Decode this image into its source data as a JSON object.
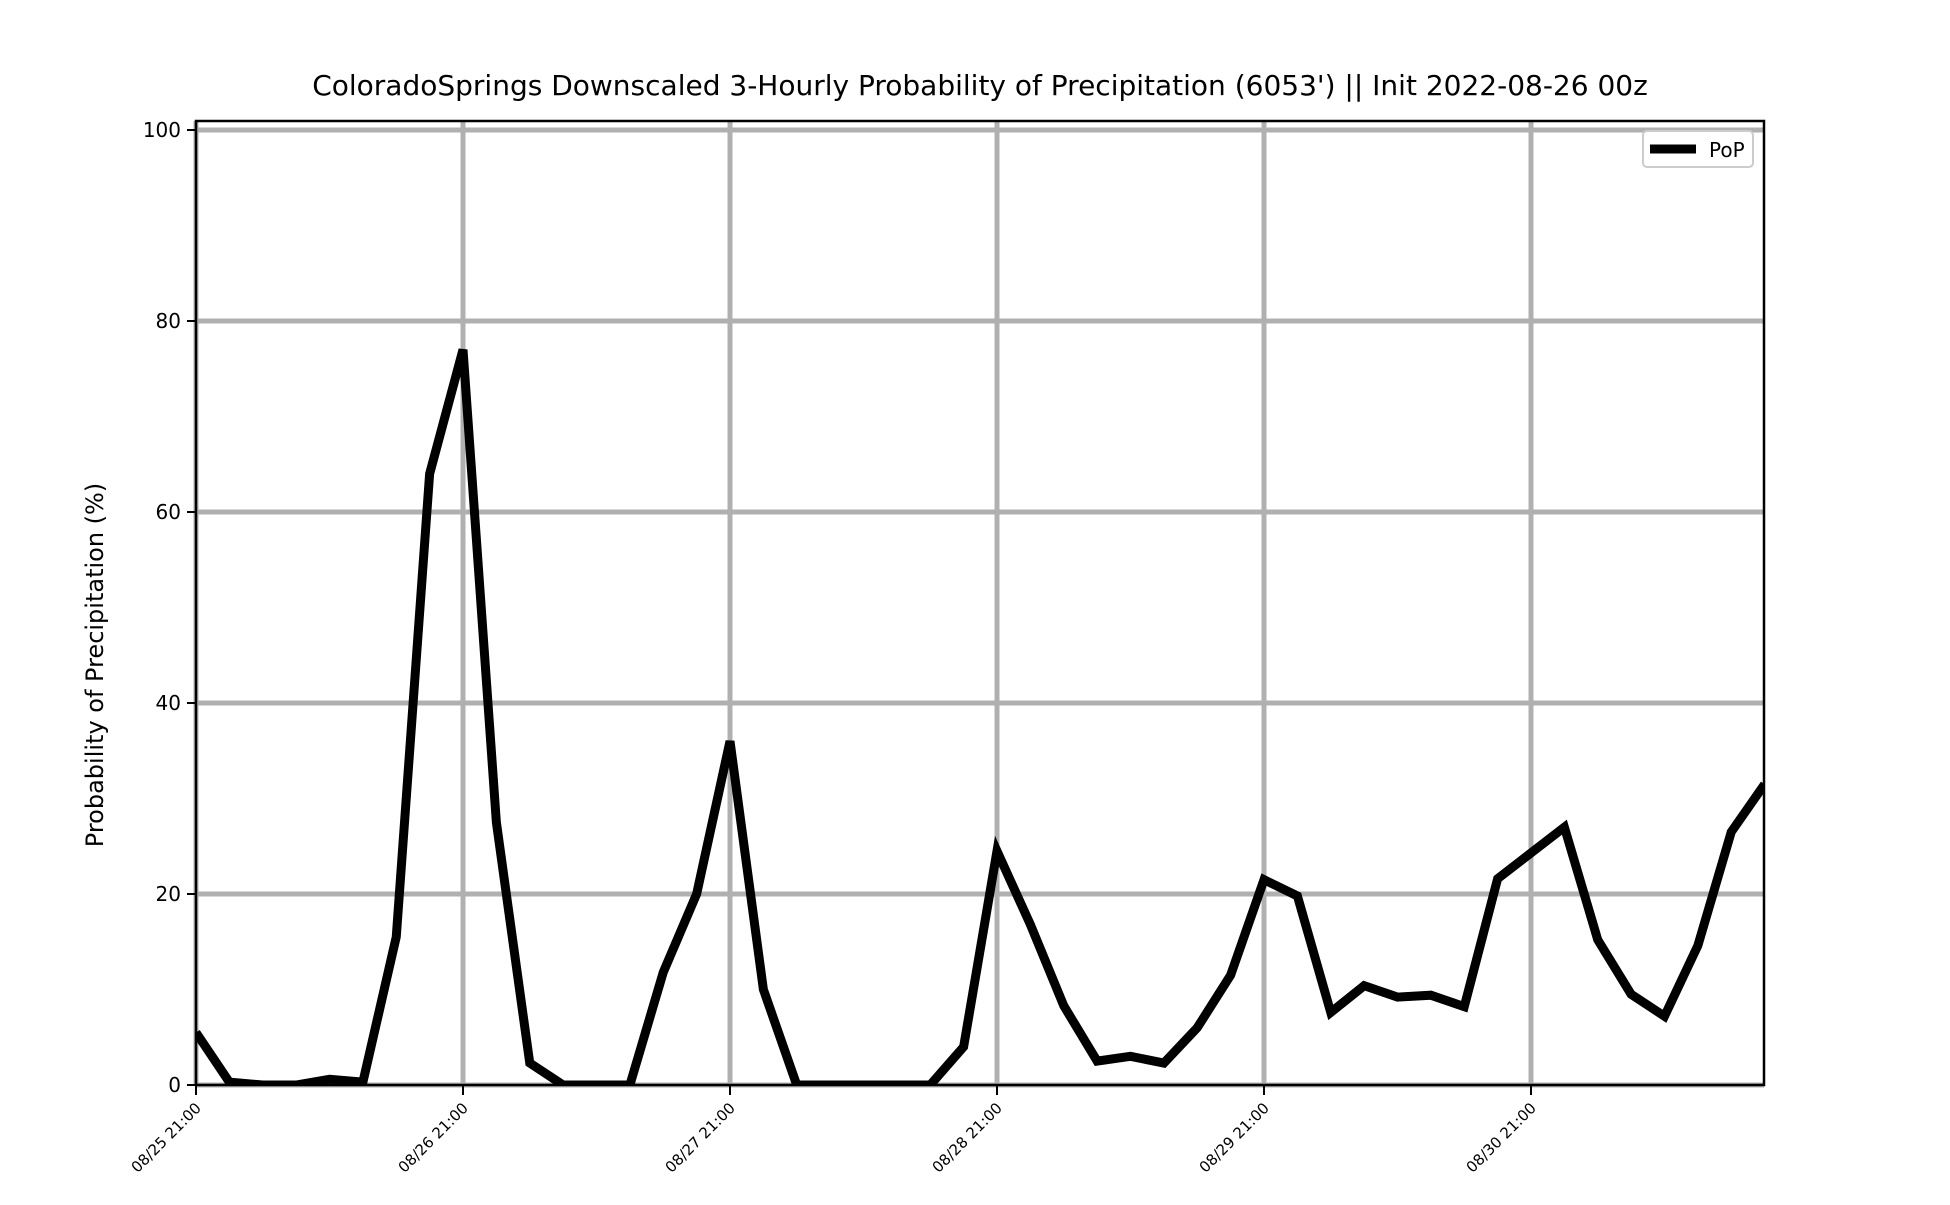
{
  "chart_data": {
    "type": "line",
    "title": "ColoradoSprings Downscaled 3-Hourly Probability of Precipitation (6053') || Init 2022-08-26 00z",
    "xlabel": "",
    "ylabel": "Probability of Precipitation (%)",
    "ylim": [
      0,
      100
    ],
    "yticks": [
      "0",
      "20",
      "40",
      "60",
      "80",
      "100"
    ],
    "xticks": [
      "08/25 21:00",
      "08/26 21:00",
      "08/27 21:00",
      "08/28 21:00",
      "08/29 21:00",
      "08/30 21:00"
    ],
    "x_start": "08/25 21:00",
    "x_end": "08/31 18:00",
    "x_step": "3 hours",
    "grid": true,
    "legend": {
      "position": "top-right",
      "entries": [
        "PoP"
      ]
    },
    "series": [
      {
        "name": "PoP",
        "color": "#000000",
        "values": [
          5.5,
          0.3,
          0,
          0,
          0.6,
          0.3,
          15.5,
          64,
          77,
          27.5,
          2.3,
          0,
          0,
          0,
          11.8,
          20,
          36,
          10,
          0,
          0,
          0,
          0,
          0,
          4,
          24.5,
          16.8,
          8.3,
          2.5,
          3,
          2.3,
          6,
          11.5,
          21.5,
          19.8,
          7.6,
          10.4,
          9.2,
          9.4,
          8.2,
          21.6,
          24.3,
          27,
          15.2,
          9.5,
          7.2,
          14.6,
          26.5,
          31.5
        ]
      }
    ]
  }
}
